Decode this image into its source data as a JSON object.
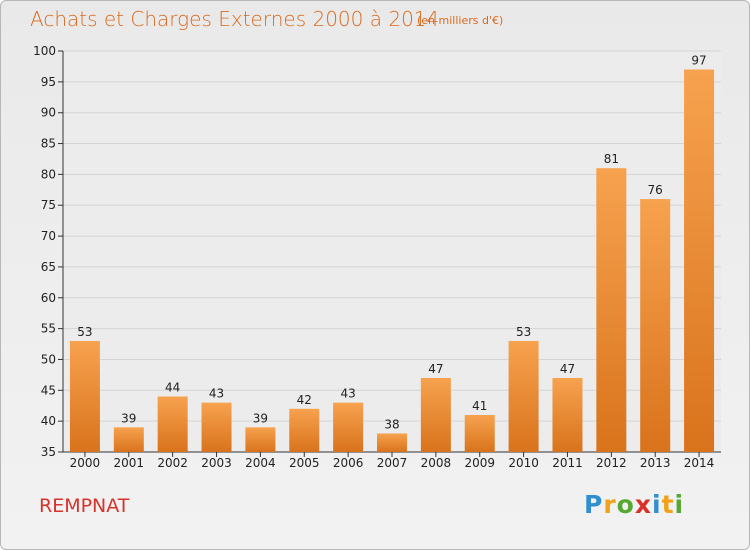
{
  "header": {
    "title": "Achats et Charges Externes 2000 à 2014",
    "unit": "(en milliers d'€)"
  },
  "footer": {
    "commune": "REMPNAT",
    "logo_text": "Proxiti",
    "logo_letters": [
      {
        "ch": "P",
        "color": "#2f8fcf"
      },
      {
        "ch": "r",
        "color": "#f0a21a"
      },
      {
        "ch": "o",
        "color": "#57a832"
      },
      {
        "ch": "x",
        "color": "#d8302a"
      },
      {
        "ch": "i",
        "color": "#2f8fcf"
      },
      {
        "ch": "t",
        "color": "#f0a21a"
      },
      {
        "ch": "i",
        "color": "#57a832"
      }
    ]
  },
  "colors": {
    "bar_top": "#f7a24f",
    "bar_bottom": "#d9731c",
    "grid": "#d4d4d4",
    "axis": "#333333",
    "title": "#d96a1f",
    "commune": "#d7322b"
  },
  "chart_data": {
    "type": "bar",
    "title": "Achats et Charges Externes 2000 à 2014",
    "subtitle": "(en milliers d'€)",
    "xlabel": "",
    "ylabel": "",
    "categories": [
      "2000",
      "2001",
      "2002",
      "2003",
      "2004",
      "2005",
      "2006",
      "2007",
      "2008",
      "2009",
      "2010",
      "2011",
      "2012",
      "2013",
      "2014"
    ],
    "values": [
      53,
      39,
      44,
      43,
      39,
      42,
      43,
      38,
      47,
      41,
      53,
      47,
      81,
      76,
      97
    ],
    "ylim": [
      35,
      100
    ],
    "yticks": [
      35,
      40,
      45,
      50,
      55,
      60,
      65,
      70,
      75,
      80,
      85,
      90,
      95,
      100
    ],
    "grid": true,
    "legend": "none",
    "data_labels": true
  }
}
